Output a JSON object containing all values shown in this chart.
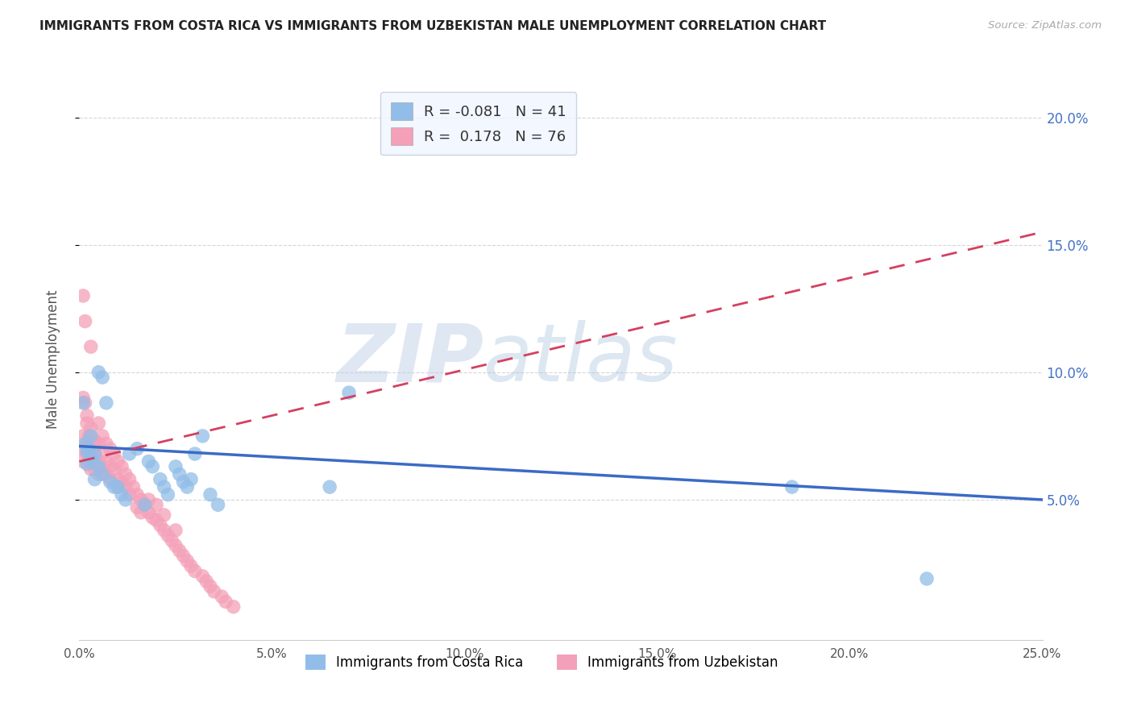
{
  "title": "IMMIGRANTS FROM COSTA RICA VS IMMIGRANTS FROM UZBEKISTAN MALE UNEMPLOYMENT CORRELATION CHART",
  "source": "Source: ZipAtlas.com",
  "ylabel": "Male Unemployment",
  "xlim": [
    0.0,
    0.25
  ],
  "ylim": [
    -0.005,
    0.215
  ],
  "xticks": [
    0.0,
    0.05,
    0.1,
    0.15,
    0.2,
    0.25
  ],
  "xtick_labels": [
    "0.0%",
    "5.0%",
    "10.0%",
    "15.0%",
    "20.0%",
    "25.0%"
  ],
  "yticks_right": [
    0.05,
    0.1,
    0.15,
    0.2
  ],
  "ytick_labels_right": [
    "5.0%",
    "10.0%",
    "15.0%",
    "20.0%"
  ],
  "yticks_grid": [
    0.05,
    0.1,
    0.15,
    0.2
  ],
  "costa_rica_R": -0.081,
  "costa_rica_N": 41,
  "uzbekistan_R": 0.178,
  "uzbekistan_N": 76,
  "costa_rica_color": "#92BDE8",
  "uzbekistan_color": "#F4A0B8",
  "trend_costa_rica_color": "#3B6BC4",
  "trend_uzbekistan_color": "#D44060",
  "watermark_zip": "ZIP",
  "watermark_atlas": "atlas",
  "trend_cr_x0": 0.0,
  "trend_cr_y0": 0.071,
  "trend_cr_x1": 0.25,
  "trend_cr_y1": 0.05,
  "trend_uz_x0": 0.0,
  "trend_uz_y0": 0.065,
  "trend_uz_x1": 0.25,
  "trend_uz_y1": 0.155,
  "costa_rica_x": [
    0.001,
    0.0015,
    0.002,
    0.002,
    0.0025,
    0.003,
    0.003,
    0.0035,
    0.004,
    0.004,
    0.005,
    0.005,
    0.006,
    0.006,
    0.007,
    0.008,
    0.009,
    0.01,
    0.011,
    0.012,
    0.013,
    0.015,
    0.017,
    0.018,
    0.019,
    0.021,
    0.022,
    0.023,
    0.025,
    0.026,
    0.027,
    0.028,
    0.029,
    0.03,
    0.032,
    0.034,
    0.036,
    0.065,
    0.07,
    0.185,
    0.22
  ],
  "costa_rica_y": [
    0.088,
    0.072,
    0.069,
    0.064,
    0.07,
    0.067,
    0.075,
    0.065,
    0.068,
    0.058,
    0.1,
    0.063,
    0.098,
    0.06,
    0.088,
    0.057,
    0.055,
    0.055,
    0.052,
    0.05,
    0.068,
    0.07,
    0.048,
    0.065,
    0.063,
    0.058,
    0.055,
    0.052,
    0.063,
    0.06,
    0.057,
    0.055,
    0.058,
    0.068,
    0.075,
    0.052,
    0.048,
    0.055,
    0.092,
    0.055,
    0.019
  ],
  "uzbekistan_x": [
    0.0005,
    0.001,
    0.001,
    0.001,
    0.001,
    0.0015,
    0.0015,
    0.002,
    0.002,
    0.002,
    0.002,
    0.0025,
    0.0025,
    0.003,
    0.003,
    0.003,
    0.003,
    0.0035,
    0.0035,
    0.004,
    0.004,
    0.004,
    0.005,
    0.005,
    0.005,
    0.005,
    0.006,
    0.006,
    0.006,
    0.007,
    0.007,
    0.007,
    0.008,
    0.008,
    0.008,
    0.009,
    0.009,
    0.01,
    0.01,
    0.01,
    0.011,
    0.011,
    0.012,
    0.012,
    0.013,
    0.013,
    0.014,
    0.015,
    0.015,
    0.016,
    0.016,
    0.017,
    0.018,
    0.018,
    0.019,
    0.02,
    0.02,
    0.021,
    0.022,
    0.022,
    0.023,
    0.024,
    0.025,
    0.025,
    0.026,
    0.027,
    0.028,
    0.029,
    0.03,
    0.032,
    0.033,
    0.034,
    0.035,
    0.037,
    0.038,
    0.04
  ],
  "uzbekistan_y": [
    0.07,
    0.09,
    0.075,
    0.13,
    0.065,
    0.088,
    0.12,
    0.083,
    0.08,
    0.072,
    0.068,
    0.075,
    0.065,
    0.11,
    0.078,
    0.068,
    0.062,
    0.072,
    0.065,
    0.073,
    0.068,
    0.062,
    0.08,
    0.072,
    0.065,
    0.06,
    0.075,
    0.068,
    0.062,
    0.072,
    0.065,
    0.06,
    0.07,
    0.063,
    0.058,
    0.068,
    0.062,
    0.065,
    0.058,
    0.055,
    0.063,
    0.057,
    0.06,
    0.055,
    0.058,
    0.052,
    0.055,
    0.052,
    0.047,
    0.05,
    0.045,
    0.048,
    0.045,
    0.05,
    0.043,
    0.042,
    0.048,
    0.04,
    0.038,
    0.044,
    0.036,
    0.034,
    0.032,
    0.038,
    0.03,
    0.028,
    0.026,
    0.024,
    0.022,
    0.02,
    0.018,
    0.016,
    0.014,
    0.012,
    0.01,
    0.008
  ]
}
